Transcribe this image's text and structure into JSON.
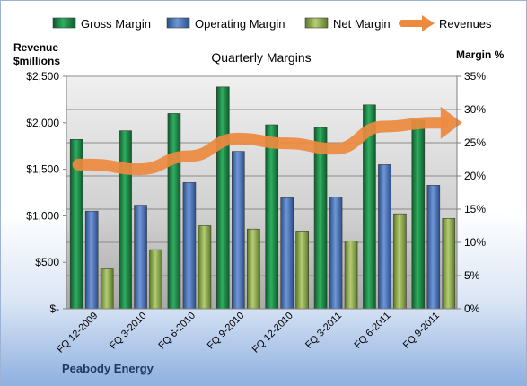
{
  "chart_data": {
    "type": "bar",
    "title": "Quarterly Margins",
    "company": "Peabody Energy",
    "left_axis_label": [
      "Revenue",
      "$millions"
    ],
    "right_axis_label": "Margin %",
    "categories": [
      "FQ 12-2009",
      "FQ 3-2010",
      "FQ 6-2010",
      "FQ 9-2010",
      "FQ 12-2010",
      "FQ 3-2011",
      "FQ 6-2011",
      "FQ 9-2011"
    ],
    "left_ticks": [
      "$-",
      "$500",
      "$1,000",
      "$1,500",
      "$2,000",
      "$2,500"
    ],
    "right_ticks": [
      "0%",
      "5%",
      "10%",
      "15%",
      "20%",
      "25%",
      "30%",
      "35%"
    ],
    "ylim_left": [
      0,
      2500
    ],
    "ylim_right": [
      0,
      35
    ],
    "grid": true,
    "legend_position": "top",
    "series": [
      {
        "name": "Gross Margin",
        "type": "bar",
        "axis": "right",
        "color": "#1e8c4a",
        "values": [
          25.5,
          26.8,
          29.4,
          33.4,
          27.7,
          27.3,
          30.7,
          28.4
        ]
      },
      {
        "name": "Operating Margin",
        "type": "bar",
        "axis": "right",
        "color": "#4a74b8",
        "values": [
          14.7,
          15.6,
          19.0,
          23.7,
          16.7,
          16.8,
          21.7,
          18.6
        ]
      },
      {
        "name": "Net Margin",
        "type": "bar",
        "axis": "right",
        "color": "#8fac4c",
        "values": [
          6.0,
          8.9,
          12.5,
          12.0,
          11.7,
          10.2,
          14.3,
          13.6
        ]
      },
      {
        "name": "Revenues",
        "type": "line",
        "axis": "left",
        "color": "#ed8a3f",
        "values": [
          1550,
          1500,
          1640,
          1830,
          1780,
          1720,
          1960,
          2000
        ]
      }
    ]
  }
}
